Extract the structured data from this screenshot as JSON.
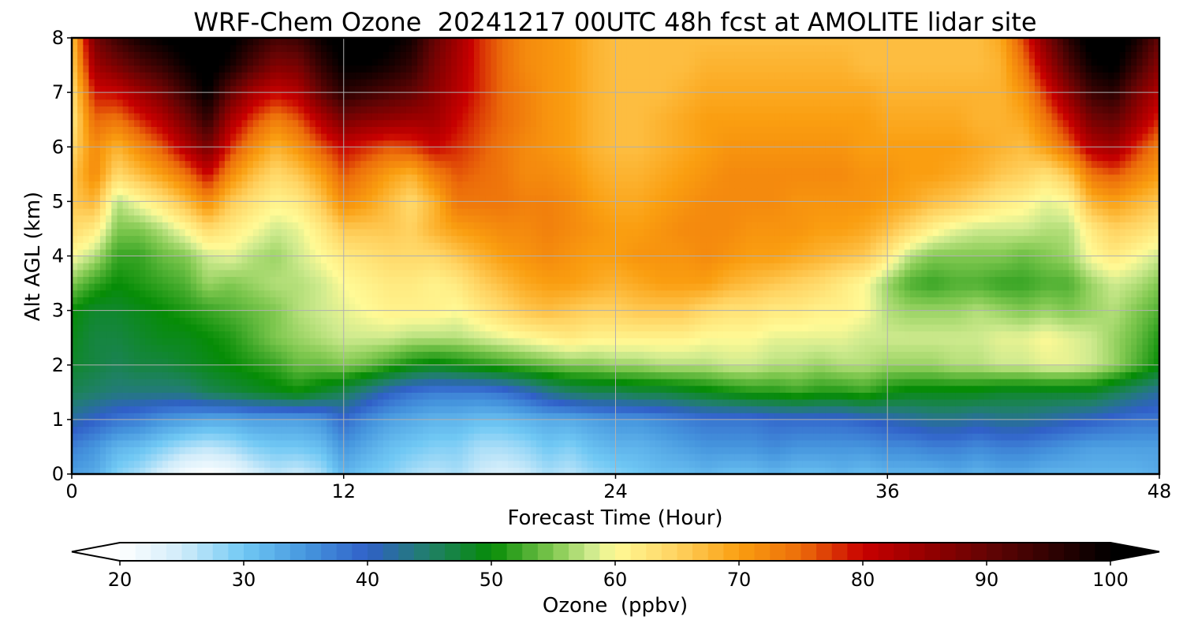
{
  "chart_data": {
    "type": "heatmap",
    "title": "WRF-Chem Ozone  20241217 00UTC 48h fcst at AMOLITE lidar site",
    "xlabel": "Forecast Time (Hour)",
    "ylabel": "Alt AGL (km)",
    "xlim": [
      0,
      48
    ],
    "ylim": [
      0,
      8
    ],
    "x_ticks": [
      "0",
      "12",
      "24",
      "36",
      "48"
    ],
    "y_ticks": [
      "0",
      "1",
      "2",
      "3",
      "4",
      "5",
      "6",
      "7",
      "8"
    ],
    "grid": true,
    "colorbar": {
      "label": "Ozone  (ppbv)",
      "range": [
        20,
        100
      ],
      "ticks": [
        "20",
        "30",
        "40",
        "50",
        "60",
        "70",
        "80",
        "90",
        "100"
      ],
      "extend": "both",
      "orientation": "horizontal",
      "placement": "bottom"
    },
    "x": [
      0,
      1,
      2,
      3,
      4,
      5,
      6,
      7,
      8,
      9,
      10,
      11,
      12,
      13,
      14,
      15,
      16,
      17,
      18,
      19,
      20,
      21,
      22,
      23,
      24,
      25,
      26,
      27,
      28,
      29,
      30,
      31,
      32,
      33,
      34,
      35,
      36,
      37,
      38,
      39,
      40,
      41,
      42,
      43,
      44,
      45,
      46,
      47,
      48
    ],
    "y": [
      0,
      0.5,
      1,
      1.5,
      2,
      2.5,
      3,
      3.5,
      4,
      4.5,
      5,
      5.5,
      6,
      6.5,
      7,
      7.5,
      8
    ],
    "z": [
      [
        34,
        33,
        29,
        27,
        24,
        21,
        20,
        21,
        24,
        26,
        25,
        27,
        32,
        30,
        29,
        27,
        26,
        27,
        25,
        24,
        25,
        27,
        26,
        28,
        29,
        30,
        31,
        31,
        32,
        31,
        31,
        32,
        31,
        31,
        32,
        31,
        32,
        32,
        32,
        33,
        32,
        33,
        33,
        32,
        32,
        32,
        32,
        32,
        33
      ],
      [
        37,
        35,
        32,
        31,
        29,
        27,
        26,
        27,
        29,
        30,
        30,
        31,
        35,
        33,
        31,
        30,
        29,
        29,
        27,
        27,
        28,
        30,
        29,
        31,
        32,
        32,
        33,
        34,
        35,
        35,
        35,
        36,
        35,
        35,
        35,
        35,
        36,
        36,
        37,
        37,
        36,
        37,
        37,
        36,
        35,
        34,
        34,
        34,
        34
      ],
      [
        42,
        40,
        38,
        37,
        35,
        34,
        33,
        33,
        34,
        34,
        34,
        35,
        39,
        36,
        34,
        33,
        32,
        32,
        31,
        31,
        32,
        33,
        33,
        34,
        35,
        35,
        36,
        37,
        38,
        38,
        38,
        39,
        39,
        39,
        39,
        40,
        41,
        42,
        43,
        43,
        42,
        43,
        43,
        42,
        41,
        40,
        39,
        38,
        38
      ],
      [
        46,
        45,
        44,
        44,
        44,
        44,
        46,
        47,
        48,
        49,
        50,
        48,
        46,
        43,
        40,
        38,
        37,
        37,
        37,
        38,
        40,
        43,
        45,
        46,
        46,
        47,
        47,
        48,
        49,
        50,
        51,
        51,
        52,
        51,
        51,
        52,
        50,
        49,
        49,
        49,
        49,
        48,
        48,
        48,
        48,
        48,
        46,
        44,
        42
      ],
      [
        48,
        47,
        46,
        47,
        47,
        48,
        49,
        50,
        51,
        52,
        54,
        54,
        55,
        54,
        52,
        50,
        49,
        50,
        51,
        52,
        53,
        54,
        55,
        55,
        56,
        56,
        57,
        57,
        57,
        58,
        58,
        57,
        57,
        56,
        57,
        57,
        56,
        56,
        56,
        57,
        57,
        58,
        58,
        59,
        59,
        58,
        56,
        53,
        50
      ],
      [
        49,
        47,
        47,
        48,
        49,
        49,
        50,
        51,
        53,
        55,
        56,
        57,
        58,
        58,
        58,
        57,
        57,
        57,
        58,
        59,
        60,
        61,
        62,
        61,
        61,
        61,
        61,
        61,
        60,
        60,
        60,
        59,
        59,
        59,
        59,
        58,
        58,
        58,
        58,
        58,
        58,
        59,
        59,
        60,
        59,
        58,
        56,
        54,
        51
      ],
      [
        50,
        48,
        48,
        49,
        50,
        51,
        52,
        53,
        54,
        55,
        57,
        58,
        59,
        60,
        61,
        61,
        61,
        60,
        62,
        64,
        66,
        67,
        66,
        65,
        65,
        66,
        66,
        66,
        64,
        63,
        63,
        62,
        62,
        61,
        61,
        60,
        57,
        56,
        56,
        56,
        57,
        56,
        55,
        56,
        55,
        56,
        57,
        55,
        53
      ],
      [
        55,
        52,
        50,
        51,
        52,
        53,
        56,
        55,
        56,
        57,
        57,
        58,
        60,
        61,
        62,
        62,
        61,
        62,
        65,
        67,
        69,
        70,
        70,
        69,
        68,
        69,
        70,
        70,
        70,
        68,
        67,
        66,
        65,
        64,
        62,
        60,
        56,
        53,
        52,
        53,
        53,
        52,
        52,
        53,
        53,
        56,
        58,
        57,
        55
      ],
      [
        60,
        57,
        52,
        52,
        54,
        55,
        58,
        59,
        57,
        56,
        58,
        60,
        62,
        63,
        64,
        64,
        64,
        66,
        68,
        70,
        71,
        72,
        71,
        70,
        70,
        71,
        71,
        71,
        72,
        71,
        70,
        70,
        69,
        68,
        67,
        66,
        62,
        57,
        55,
        55,
        55,
        55,
        54,
        55,
        56,
        60,
        62,
        60,
        58
      ],
      [
        64,
        62,
        55,
        55,
        57,
        60,
        64,
        62,
        60,
        58,
        59,
        62,
        66,
        66,
        66,
        65,
        68,
        70,
        71,
        72,
        72,
        73,
        72,
        71,
        70,
        70,
        71,
        72,
        72,
        72,
        71,
        71,
        71,
        70,
        70,
        69,
        67,
        64,
        61,
        59,
        58,
        58,
        58,
        57,
        57,
        62,
        65,
        64,
        62
      ],
      [
        66,
        68,
        57,
        60,
        63,
        67,
        72,
        66,
        63,
        61,
        62,
        66,
        72,
        70,
        67,
        64,
        68,
        74,
        74,
        74,
        73,
        73,
        72,
        70,
        69,
        69,
        70,
        71,
        72,
        72,
        72,
        72,
        71,
        71,
        71,
        71,
        70,
        69,
        67,
        66,
        64,
        62,
        61,
        59,
        60,
        68,
        70,
        68,
        66
      ],
      [
        66,
        72,
        64,
        67,
        70,
        74,
        80,
        72,
        67,
        64,
        66,
        70,
        76,
        73,
        70,
        68,
        73,
        76,
        75,
        74,
        72,
        72,
        71,
        69,
        68,
        68,
        69,
        70,
        71,
        72,
        72,
        72,
        72,
        72,
        72,
        71,
        71,
        70,
        70,
        69,
        68,
        66,
        65,
        63,
        66,
        74,
        76,
        73,
        70
      ],
      [
        64,
        72,
        68,
        72,
        76,
        82,
        88,
        78,
        72,
        68,
        71,
        76,
        80,
        78,
        76,
        77,
        80,
        78,
        76,
        74,
        72,
        71,
        70,
        68,
        67,
        67,
        68,
        69,
        70,
        71,
        71,
        71,
        71,
        71,
        71,
        70,
        70,
        70,
        70,
        70,
        69,
        68,
        67,
        70,
        75,
        82,
        84,
        78,
        73
      ],
      [
        62,
        75,
        74,
        78,
        82,
        88,
        95,
        83,
        77,
        73,
        76,
        82,
        88,
        86,
        85,
        84,
        84,
        80,
        77,
        75,
        73,
        71,
        70,
        68,
        67,
        67,
        68,
        69,
        70,
        70,
        70,
        70,
        70,
        70,
        70,
        70,
        69,
        69,
        69,
        69,
        68,
        68,
        69,
        74,
        80,
        88,
        90,
        84,
        78
      ],
      [
        63,
        79,
        80,
        84,
        88,
        94,
        100,
        90,
        83,
        80,
        82,
        90,
        96,
        94,
        92,
        90,
        86,
        82,
        78,
        75,
        73,
        71,
        70,
        68,
        67,
        67,
        67,
        68,
        69,
        69,
        69,
        69,
        69,
        69,
        69,
        69,
        68,
        68,
        68,
        68,
        68,
        68,
        71,
        78,
        86,
        94,
        96,
        88,
        82
      ],
      [
        65,
        84,
        88,
        92,
        95,
        99,
        102,
        98,
        92,
        87,
        88,
        95,
        100,
        100,
        98,
        95,
        88,
        83,
        78,
        75,
        72,
        71,
        70,
        68,
        67,
        67,
        67,
        67,
        68,
        68,
        68,
        68,
        68,
        68,
        68,
        67,
        67,
        67,
        67,
        67,
        67,
        68,
        74,
        83,
        92,
        99,
        101,
        94,
        86
      ],
      [
        66,
        88,
        94,
        98,
        100,
        102,
        103,
        101,
        97,
        93,
        94,
        99,
        102,
        103,
        101,
        98,
        90,
        84,
        78,
        75,
        72,
        71,
        70,
        68,
        67,
        67,
        67,
        67,
        67,
        67,
        67,
        67,
        67,
        67,
        67,
        67,
        67,
        67,
        67,
        67,
        67,
        69,
        77,
        87,
        96,
        102,
        103,
        98,
        90
      ]
    ]
  }
}
